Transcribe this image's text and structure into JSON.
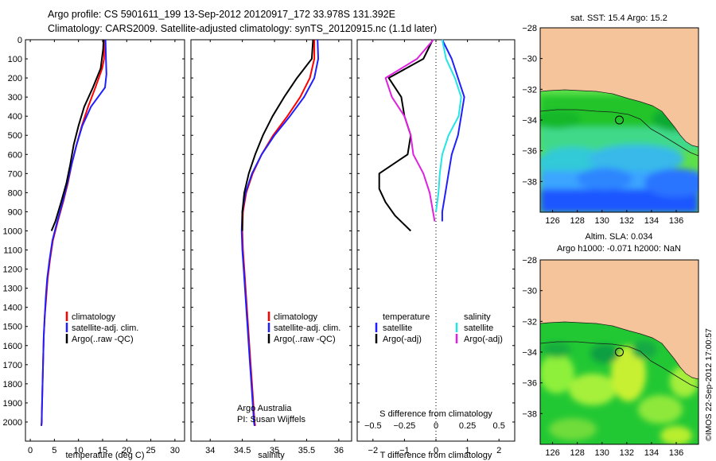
{
  "header": {
    "line1": "Argo profile: CS 5901611_199 13-Sep-2012 20120917_172 33.978S 131.392E",
    "line2": "Climatology: CARS2009. Satellite-adjusted climatology: synTS_20120915.nc (1.1d later)"
  },
  "colors": {
    "climatology": "#ff0000",
    "satellite": "#1f1fff",
    "argo": "#000000",
    "salinity_satellite": "#22e5e5",
    "salinity_argo": "#e020e0",
    "land": "#f6c49a",
    "ocean_green": "#1fd12a",
    "ocean_blue": "#1a5cff"
  },
  "chart_data": [
    {
      "type": "line",
      "name": "temperature-profile",
      "xlabel": "temperature (deg C)",
      "xlim": [
        -1,
        32
      ],
      "xticks": [
        0,
        5,
        10,
        15,
        20,
        25,
        30
      ],
      "ylim": [
        0,
        2100
      ],
      "yticks": [
        0,
        100,
        200,
        300,
        400,
        500,
        600,
        700,
        800,
        900,
        1000,
        1100,
        1200,
        1300,
        1400,
        1500,
        1600,
        1700,
        1800,
        1900,
        2000
      ],
      "legend": [
        "climatology",
        "satellite-adj. clim.",
        "Argo(..raw -QC)"
      ],
      "series": [
        {
          "name": "climatology",
          "x": [
            15.3,
            15.3,
            14.9,
            13.5,
            12.0,
            10.7,
            9.6,
            8.6,
            7.8,
            6.8,
            5.7,
            4.7,
            4.1,
            3.6,
            3.3,
            3.0,
            2.8,
            2.7,
            2.6,
            2.5,
            2.4,
            2.4,
            2.3
          ],
          "depth": [
            0,
            100,
            150,
            250,
            350,
            450,
            550,
            650,
            750,
            850,
            950,
            1050,
            1150,
            1250,
            1350,
            1450,
            1550,
            1650,
            1750,
            1850,
            1950,
            2000,
            2020
          ]
        },
        {
          "name": "satellite-adj. clim.",
          "x": [
            15.6,
            15.7,
            15.8,
            15.5,
            12.6,
            10.8,
            9.6,
            8.6,
            7.7,
            6.7,
            5.6,
            4.6,
            4.0,
            3.5,
            3.2,
            3.0,
            2.8,
            2.7,
            2.6,
            2.5,
            2.4,
            2.35,
            2.3
          ],
          "depth": [
            0,
            100,
            180,
            250,
            350,
            450,
            550,
            650,
            750,
            850,
            950,
            1050,
            1150,
            1250,
            1350,
            1450,
            1550,
            1650,
            1750,
            1850,
            1950,
            2000,
            2020
          ]
        },
        {
          "name": "Argo(..raw -QC)",
          "x": [
            15.2,
            15.1,
            14.6,
            13.0,
            11.2,
            10.0,
            9.0,
            8.3,
            7.5,
            6.4,
            5.2,
            4.4
          ],
          "depth": [
            0,
            50,
            150,
            250,
            350,
            450,
            550,
            650,
            750,
            850,
            950,
            1000
          ]
        }
      ]
    },
    {
      "type": "line",
      "name": "salinity-profile",
      "xlabel": "salinity",
      "xlim": [
        33.7,
        36.2
      ],
      "xticks": [
        34,
        34.5,
        35,
        35.5,
        36
      ],
      "ylim": [
        0,
        2100
      ],
      "legend": [
        "climatology",
        "satellite-adj. clim.",
        "Argo(..raw -QC)"
      ],
      "annotations": [
        "Argo Australia",
        "PI: Susan Wijffels"
      ],
      "series": [
        {
          "name": "climatology",
          "x": [
            35.62,
            35.62,
            35.55,
            35.4,
            35.2,
            34.98,
            34.8,
            34.66,
            34.56,
            34.51,
            34.5,
            34.51,
            34.53,
            34.55,
            34.57,
            34.59,
            34.61,
            34.63,
            34.65,
            34.67,
            34.69,
            34.7
          ],
          "depth": [
            0,
            100,
            200,
            300,
            400,
            500,
            600,
            700,
            800,
            900,
            1000,
            1100,
            1200,
            1300,
            1400,
            1500,
            1600,
            1700,
            1800,
            1900,
            2000,
            2020
          ]
        },
        {
          "name": "satellite-adj. clim.",
          "x": [
            35.67,
            35.68,
            35.62,
            35.46,
            35.24,
            35.0,
            34.8,
            34.65,
            34.55,
            34.5,
            34.49,
            34.5,
            34.52,
            34.54,
            34.56,
            34.58,
            34.6,
            34.62,
            34.64,
            34.66,
            34.68,
            34.69
          ],
          "depth": [
            0,
            100,
            200,
            300,
            400,
            500,
            600,
            700,
            800,
            900,
            1000,
            1100,
            1200,
            1300,
            1400,
            1500,
            1600,
            1700,
            1800,
            1900,
            2000,
            2020
          ]
        },
        {
          "name": "Argo(..raw -QC)",
          "x": [
            35.6,
            35.58,
            35.35,
            35.15,
            34.97,
            34.82,
            34.7,
            34.6,
            34.53,
            34.5,
            34.5
          ],
          "depth": [
            0,
            100,
            200,
            300,
            400,
            500,
            600,
            700,
            800,
            900,
            1000
          ]
        }
      ]
    },
    {
      "type": "line",
      "name": "difference-profile",
      "xlabel": "T difference from climatology",
      "xlabel2": "S difference from climatology",
      "xlim": [
        -2.5,
        2.5
      ],
      "xticks": [
        -2,
        -1,
        0,
        1,
        2
      ],
      "xticks2": [
        -0.5,
        -0.25,
        0,
        0.25,
        0.5
      ],
      "xticks2_labels": [
        "−0.5",
        "−0.25",
        "0",
        "0.25",
        "0.5"
      ],
      "xticks_labels": [
        "−2",
        "−1",
        "0",
        "1",
        "2"
      ],
      "ylim": [
        0,
        2100
      ],
      "legend": {
        "temperature_title": "temperature",
        "salinity_title": "salinity",
        "items": [
          "satellite",
          "Argo(-adj)",
          "satellite",
          "Argo(-adj)"
        ]
      },
      "series": [
        {
          "name": "temperature satellite",
          "x": [
            0.2,
            0.5,
            0.7,
            0.9,
            0.8,
            0.7,
            0.5,
            0.4,
            0.3,
            0.2,
            0.2
          ],
          "depth": [
            0,
            100,
            200,
            300,
            400,
            500,
            600,
            700,
            800,
            900,
            950
          ]
        },
        {
          "name": "temperature Argo(-adj)",
          "x": [
            -0.1,
            -0.4,
            -1.5,
            -1.1,
            -1.0,
            -0.8,
            -0.9,
            -1.8,
            -1.8,
            -1.6,
            -1.3,
            -0.8
          ],
          "depth": [
            0,
            100,
            200,
            300,
            400,
            500,
            600,
            700,
            780,
            850,
            920,
            1000
          ]
        },
        {
          "name": "salinity satellite",
          "x": [
            0.05,
            0.08,
            0.15,
            0.2,
            0.18,
            0.1,
            0.05,
            0.03,
            0.02,
            0.0
          ],
          "depth": [
            0,
            100,
            200,
            300,
            400,
            500,
            600,
            700,
            800,
            900
          ]
        },
        {
          "name": "salinity Argo(-adj)",
          "x": [
            -0.02,
            -0.15,
            -0.4,
            -0.35,
            -0.25,
            -0.2,
            -0.18,
            -0.1,
            -0.05,
            -0.01
          ],
          "depth": [
            0,
            100,
            200,
            300,
            400,
            500,
            600,
            700,
            800,
            950
          ]
        }
      ]
    }
  ],
  "maps": {
    "sst": {
      "title": "sat. SST: 15.4  Argo: 15.2",
      "lon_ticks": [
        126,
        128,
        130,
        132,
        134,
        136
      ],
      "lat_ticks": [
        -28,
        -30,
        -32,
        -34,
        -36,
        -38
      ],
      "lat_labels": [
        "−28",
        "−30",
        "−32",
        "−34",
        "−36",
        "−38"
      ],
      "profile_lon": 131.4,
      "profile_lat": -34.0
    },
    "sla": {
      "title1": "Altim. SLA: 0.034",
      "title2": "Argo h1000: -0.071  h2000: NaN",
      "lon_ticks": [
        126,
        128,
        130,
        132,
        134,
        136
      ],
      "lat_ticks": [
        -28,
        -30,
        -32,
        -34,
        -36,
        -38
      ],
      "lat_labels": [
        "−28",
        "−30",
        "−32",
        "−34",
        "−36",
        "−38"
      ],
      "profile_lon": 131.4,
      "profile_lat": -34.0
    }
  },
  "footer": {
    "stamp": "©IMOS 22-Sep-2012 17:00:57"
  }
}
